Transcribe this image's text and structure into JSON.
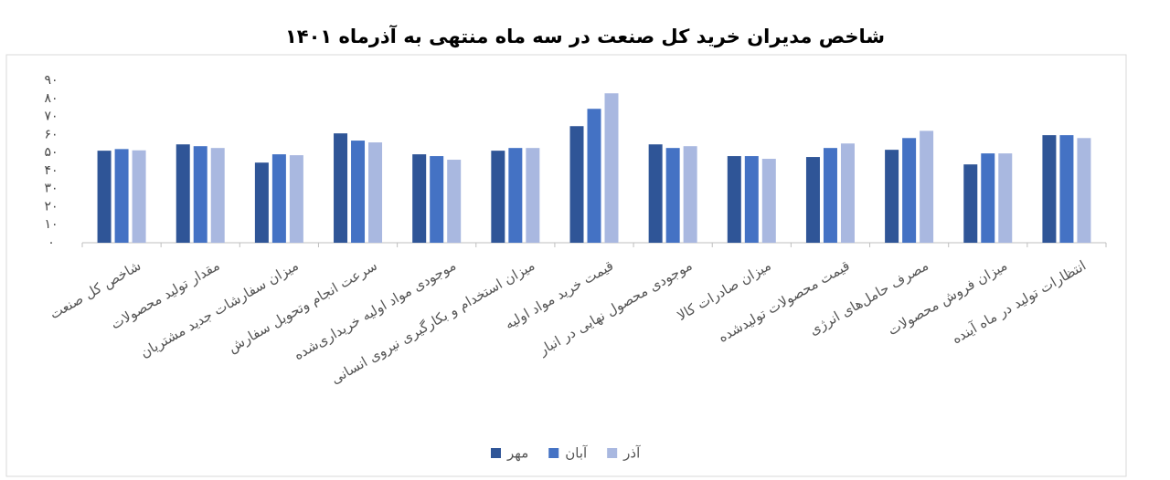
{
  "chart_data": {
    "type": "bar",
    "title": "شاخص مدیران خرید کل صنعت در سه ماه منتهی به آذرماه ۱۴۰۱",
    "categories": [
      "شاخص کل صنعت",
      "مقدار تولید محصولات",
      "میزان سفارشات جدید مشتریان",
      "سرعت انجام وتحویل سفارش",
      "موجودی مواد اولیه خریداری‌شده",
      "میزان استخدام و بکارگیری نیروی انسانی",
      "قیمت خرید مواد اولیه",
      "موجودی محصول نهایی در انبار",
      "میزان صادرات کالا",
      "قیمت محصولات تولیدشده",
      "مصرف حامل‌های انرژی",
      "میزان فروش محصولات",
      "انتظارات تولید در ماه آینده"
    ],
    "series": [
      {
        "name": "مهر",
        "color": "#2f5597",
        "values": [
          51,
          54.5,
          44.4,
          60.6,
          49,
          51,
          64.6,
          54.5,
          48,
          47.5,
          51.5,
          43.4,
          59.6
        ]
      },
      {
        "name": "آبان",
        "color": "#4472c4",
        "values": [
          51.9,
          53.5,
          49,
          56.6,
          48,
          52.5,
          74.2,
          52.5,
          48,
          52.5,
          58,
          49.5,
          59.6
        ]
      },
      {
        "name": "آذر",
        "color": "#a9b8e0",
        "values": [
          51.2,
          52.5,
          48.5,
          55.6,
          46,
          52.5,
          82.8,
          53.5,
          46.5,
          55,
          62,
          49.5,
          58
        ]
      }
    ],
    "ylim": [
      0,
      90
    ],
    "yticks": [
      {
        "value": 0,
        "label": "۰"
      },
      {
        "value": 10,
        "label": "۱۰"
      },
      {
        "value": 20,
        "label": "۲۰"
      },
      {
        "value": 30,
        "label": "۳۰"
      },
      {
        "value": 40,
        "label": "۴۰"
      },
      {
        "value": 50,
        "label": "۵۰"
      },
      {
        "value": 60,
        "label": "۶۰"
      },
      {
        "value": 70,
        "label": "۷۰"
      },
      {
        "value": 80,
        "label": "۸۰"
      },
      {
        "value": 90,
        "label": "۹۰"
      }
    ],
    "grid": false
  }
}
